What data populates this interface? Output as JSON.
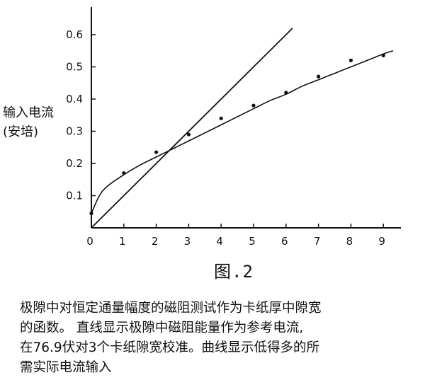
{
  "chart_data": {
    "type": "line",
    "title": "",
    "xlabel": "",
    "ylabel_lines": [
      "输入电流",
      "(安培)"
    ],
    "xlim": [
      0,
      9.5
    ],
    "ylim": [
      0,
      0.7
    ],
    "x_ticks": [
      0,
      1,
      2,
      3,
      4,
      5,
      6,
      7,
      8,
      9
    ],
    "y_ticks": [
      0.1,
      0.2,
      0.3,
      0.4,
      0.5,
      0.6
    ],
    "grid": false,
    "legend": "none",
    "series": [
      {
        "kind": "points",
        "x": [
          0,
          1,
          2,
          3,
          4,
          5,
          6,
          7,
          8,
          9
        ],
        "y": [
          0.045,
          0.17,
          0.235,
          0.29,
          0.34,
          0.38,
          0.42,
          0.47,
          0.52,
          0.535
        ]
      },
      {
        "kind": "straight-line",
        "x": [
          0,
          6.2
        ],
        "y": [
          0,
          0.62
        ]
      },
      {
        "kind": "fitted-curve",
        "x": [
          0,
          0.25,
          0.5,
          1,
          1.5,
          2,
          2.5,
          3,
          3.5,
          4,
          4.5,
          5,
          5.5,
          6,
          6.5,
          7,
          7.5,
          8,
          8.5,
          9,
          9.3
        ],
        "y": [
          0.045,
          0.1,
          0.13,
          0.165,
          0.195,
          0.22,
          0.245,
          0.27,
          0.295,
          0.32,
          0.345,
          0.37,
          0.395,
          0.415,
          0.44,
          0.46,
          0.48,
          0.5,
          0.52,
          0.54,
          0.55
        ]
      }
    ]
  },
  "figure_caption": "图.2",
  "description_lines": [
    "极隙中对恒定通量幅度的磁阻测试作为卡纸厚中隙宽",
    "的函数。 直线显示极隙中磁阻能量作为参考电流,",
    "在76.9伏对3个卡纸隙宽校准。曲线显示低得多的所",
    "需实际电流输入"
  ]
}
